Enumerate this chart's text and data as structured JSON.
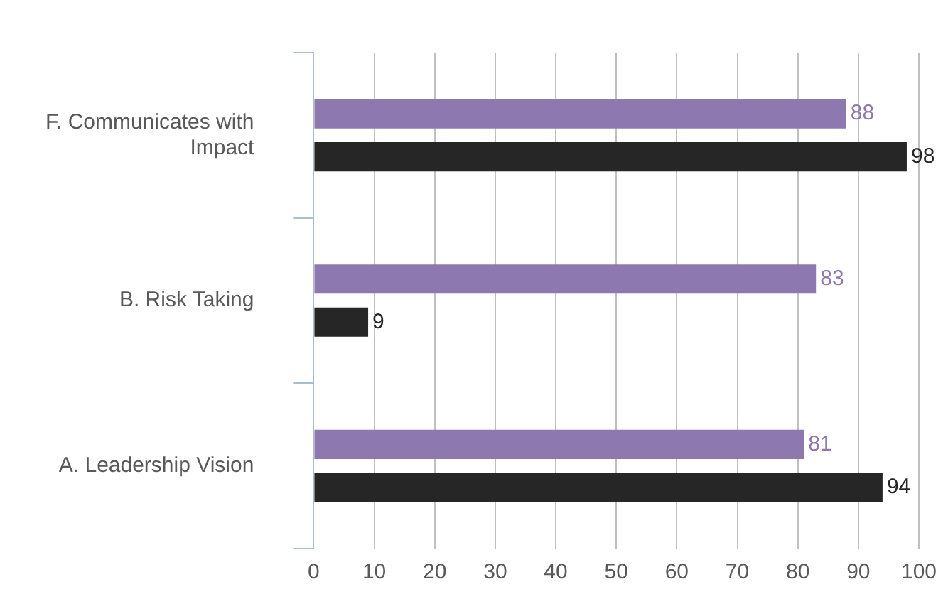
{
  "chart_data": {
    "type": "bar",
    "orientation": "horizontal",
    "categories": [
      "F. Communicates with Impact",
      "B. Risk Taking",
      "A. Leadership Vision"
    ],
    "series": [
      {
        "color": "#8e78b0",
        "values": [
          88,
          83,
          81
        ]
      },
      {
        "color": "#262626",
        "values": [
          98,
          9,
          94
        ]
      }
    ],
    "xlim": [
      0,
      100
    ],
    "xticks": [
      0,
      10,
      20,
      30,
      40,
      50,
      60,
      70,
      80,
      90,
      100
    ],
    "grid": "x",
    "data_labels": true,
    "legend": false
  }
}
